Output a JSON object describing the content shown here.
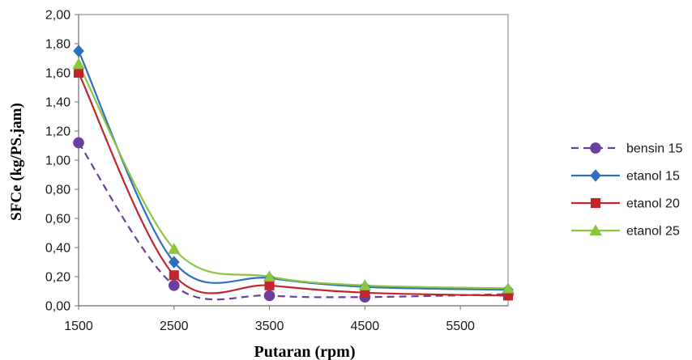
{
  "chart_data": {
    "type": "line",
    "xlabel": "Putaran (rpm)",
    "ylabel": "SFCe (kg/PS.jam)",
    "x": [
      1500,
      2500,
      3500,
      4500,
      6000
    ],
    "xticks": [
      "1500",
      "2500",
      "3500",
      "4500",
      "5500"
    ],
    "xtick_values": [
      1500,
      2500,
      3500,
      4500,
      5500
    ],
    "xlim": [
      1500,
      6000
    ],
    "ylim": [
      0,
      2
    ],
    "yticks": [
      "0,00",
      "0,20",
      "0,40",
      "0,60",
      "0,80",
      "1,00",
      "1,20",
      "1,40",
      "1,60",
      "1,80",
      "2,00"
    ],
    "ytick_values": [
      0,
      0.2,
      0.4,
      0.6,
      0.8,
      1.0,
      1.2,
      1.4,
      1.6,
      1.8,
      2.0
    ],
    "grid": false,
    "legend_position": "right",
    "series": [
      {
        "name": "bensin 15",
        "values": [
          1.12,
          0.14,
          0.07,
          0.06,
          0.08
        ],
        "color": "#6b3fa0",
        "marker": "circle",
        "dashed": true
      },
      {
        "name": "etanol 15",
        "values": [
          1.75,
          0.3,
          0.19,
          0.13,
          0.11
        ],
        "color": "#2e6fc0",
        "marker": "diamond",
        "dashed": false
      },
      {
        "name": "etanol 20",
        "values": [
          1.6,
          0.21,
          0.14,
          0.09,
          0.07
        ],
        "color": "#c0272d",
        "marker": "square",
        "dashed": false
      },
      {
        "name": "etanol 25",
        "values": [
          1.66,
          0.39,
          0.2,
          0.14,
          0.12
        ],
        "color": "#8cc63f",
        "marker": "triangle",
        "dashed": false
      }
    ]
  }
}
